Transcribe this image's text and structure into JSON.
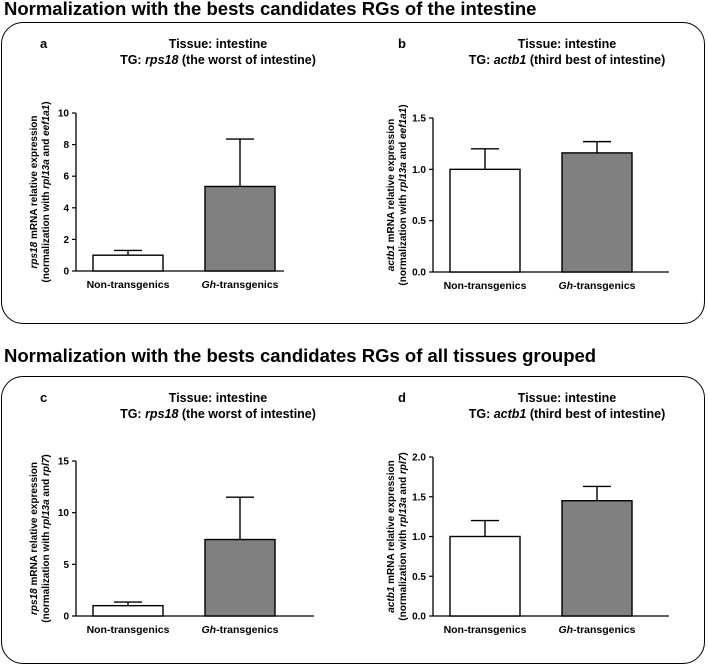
{
  "sections": [
    {
      "title": "Normalization with the bests candidates RGs of the intestine"
    },
    {
      "title": "Normalization with the bests candidates RGs of all tissues grouped"
    }
  ],
  "chart_data": [
    {
      "type": "bar",
      "panel": "a",
      "title_line1": "Tissue: intestine",
      "title_line2": [
        {
          "t": "TG: "
        },
        {
          "t": "rps18",
          "i": true
        },
        {
          "t": " (the worst of intestine)"
        }
      ],
      "ylabel_line1": [
        {
          "t": "rps18",
          "i": true
        },
        {
          "t": " mRNA relative expression"
        }
      ],
      "ylabel_line2": [
        {
          "t": "(normalization with "
        },
        {
          "t": "rpl13a",
          "i": true
        },
        {
          "t": " and "
        },
        {
          "t": "eef1a1",
          "i": true
        },
        {
          "t": ")"
        }
      ],
      "categories": [
        [
          {
            "t": "Non-transgenics"
          }
        ],
        [
          {
            "t": "Gh",
            "i": true
          },
          {
            "t": "-transgenics"
          }
        ]
      ],
      "values": [
        1.0,
        5.35
      ],
      "error_upper": [
        0.3,
        3.0
      ],
      "bar_colors": [
        "#ffffff",
        "#808080"
      ],
      "ylim": [
        0,
        10
      ],
      "yticks": [
        0,
        2,
        4,
        6,
        8,
        10
      ],
      "ytick_labels": [
        "0",
        "2",
        "4",
        "6",
        "8",
        "10"
      ]
    },
    {
      "type": "bar",
      "panel": "b",
      "title_line1": "Tissue: intestine",
      "title_line2": [
        {
          "t": "TG: "
        },
        {
          "t": "actb1",
          "i": true
        },
        {
          "t": " (third best of intestine)"
        }
      ],
      "ylabel_line1": [
        {
          "t": "actb1",
          "i": true
        },
        {
          "t": " mRNA relative expression"
        }
      ],
      "ylabel_line2": [
        {
          "t": "(normalization with "
        },
        {
          "t": "rpl13a",
          "i": true
        },
        {
          "t": " and "
        },
        {
          "t": "eef1a1",
          "i": true
        },
        {
          "t": ")"
        }
      ],
      "categories": [
        [
          {
            "t": "Non-transgenics"
          }
        ],
        [
          {
            "t": "Gh",
            "i": true
          },
          {
            "t": "-transgenics"
          }
        ]
      ],
      "values": [
        1.0,
        1.16
      ],
      "error_upper": [
        0.2,
        0.11
      ],
      "bar_colors": [
        "#ffffff",
        "#808080"
      ],
      "ylim": [
        0,
        1.5
      ],
      "yticks": [
        0,
        0.5,
        1.0,
        1.5
      ],
      "ytick_labels": [
        "0.0",
        "0.5",
        "1.0",
        "1.5"
      ]
    },
    {
      "type": "bar",
      "panel": "c",
      "title_line1": "Tissue: intestine",
      "title_line2": [
        {
          "t": "TG: "
        },
        {
          "t": "rps18",
          "i": true
        },
        {
          "t": " (the worst of intestine)"
        }
      ],
      "ylabel_line1": [
        {
          "t": "rps18",
          "i": true
        },
        {
          "t": " mRNA relative expression"
        }
      ],
      "ylabel_line2": [
        {
          "t": "(normalization with "
        },
        {
          "t": "rpl13a",
          "i": true
        },
        {
          "t": " and "
        },
        {
          "t": "rpl7",
          "i": true
        },
        {
          "t": ")"
        }
      ],
      "categories": [
        [
          {
            "t": "Non-transgenics"
          }
        ],
        [
          {
            "t": "Gh",
            "i": true
          },
          {
            "t": "-transgenics"
          }
        ]
      ],
      "values": [
        1.0,
        7.4
      ],
      "error_upper": [
        0.35,
        4.1
      ],
      "bar_colors": [
        "#ffffff",
        "#808080"
      ],
      "ylim": [
        0,
        15
      ],
      "yticks": [
        0,
        5,
        10,
        15
      ],
      "ytick_labels": [
        "0",
        "5",
        "10",
        "15"
      ]
    },
    {
      "type": "bar",
      "panel": "d",
      "title_line1": "Tissue: intestine",
      "title_line2": [
        {
          "t": "TG: "
        },
        {
          "t": "actb1",
          "i": true
        },
        {
          "t": " (third best of intestine)"
        }
      ],
      "ylabel_line1": [
        {
          "t": "actb1",
          "i": true
        },
        {
          "t": " mRNA relative expression"
        }
      ],
      "ylabel_line2": [
        {
          "t": "(normalization with "
        },
        {
          "t": "rpl13a",
          "i": true
        },
        {
          "t": " and "
        },
        {
          "t": "rpl7",
          "i": true
        },
        {
          "t": ")"
        }
      ],
      "categories": [
        [
          {
            "t": "Non-transgenics"
          }
        ],
        [
          {
            "t": "Gh",
            "i": true
          },
          {
            "t": "-transgenics"
          }
        ]
      ],
      "values": [
        1.0,
        1.45
      ],
      "error_upper": [
        0.2,
        0.18
      ],
      "bar_colors": [
        "#ffffff",
        "#808080"
      ],
      "ylim": [
        0,
        2.0
      ],
      "yticks": [
        0,
        0.5,
        1.0,
        1.5,
        2.0
      ],
      "ytick_labels": [
        "0.0",
        "0.5",
        "1.0",
        "1.5",
        "2.0"
      ]
    }
  ]
}
